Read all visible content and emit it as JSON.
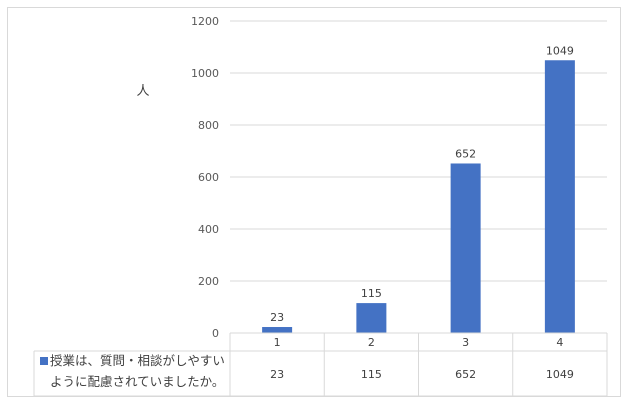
{
  "chart_data": {
    "type": "bar",
    "categories": [
      "1",
      "2",
      "3",
      "4"
    ],
    "series": [
      {
        "name": "授業は、質問・相談がしやすいように配慮されていましたか。",
        "name_lines": [
          "授業は、質問・相談がしやすい",
          "ように配慮されていましたか。"
        ],
        "values": [
          23,
          115,
          652,
          1049
        ],
        "color": "#4472c4"
      }
    ],
    "data_labels": [
      "23",
      "115",
      "652",
      "1049"
    ],
    "table_values": [
      "23",
      "115",
      "652",
      "1049"
    ],
    "ylabel": "人",
    "yticks": [
      "0",
      "200",
      "400",
      "600",
      "800",
      "1000",
      "1200"
    ],
    "ylim": [
      0,
      1200
    ],
    "grid": true,
    "legend": "data-table"
  }
}
